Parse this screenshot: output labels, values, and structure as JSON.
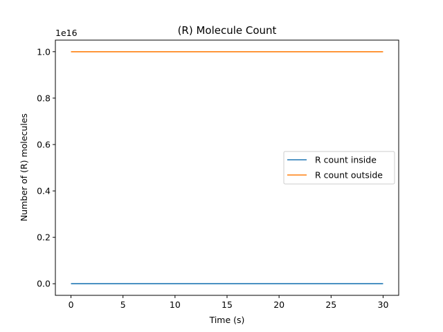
{
  "chart_data": {
    "type": "line",
    "title": "(R) Molecule Count",
    "xlabel": "Time (s)",
    "ylabel": "Number of (R) molecules",
    "y_offset_label": "1e16",
    "y_scale_factor": 1e+16,
    "xlim": [
      -1.5,
      31.5
    ],
    "ylim": [
      -0.05,
      1.05
    ],
    "x_ticks": [
      0,
      5,
      10,
      15,
      20,
      25,
      30
    ],
    "x_tick_labels": [
      "0",
      "5",
      "10",
      "15",
      "20",
      "25",
      "30"
    ],
    "y_ticks": [
      0.0,
      0.2,
      0.4,
      0.6,
      0.8,
      1.0
    ],
    "y_tick_labels": [
      "0.0",
      "0.2",
      "0.4",
      "0.6",
      "0.8",
      "1.0"
    ],
    "grid": false,
    "legend_position": "center-right",
    "series": [
      {
        "name": "R count inside",
        "color": "#1f77b4",
        "x": [
          0,
          30
        ],
        "y": [
          0.0,
          0.0
        ]
      },
      {
        "name": "R count outside",
        "color": "#ff7f0e",
        "x": [
          0,
          30
        ],
        "y": [
          1.0,
          1.0
        ]
      }
    ]
  }
}
